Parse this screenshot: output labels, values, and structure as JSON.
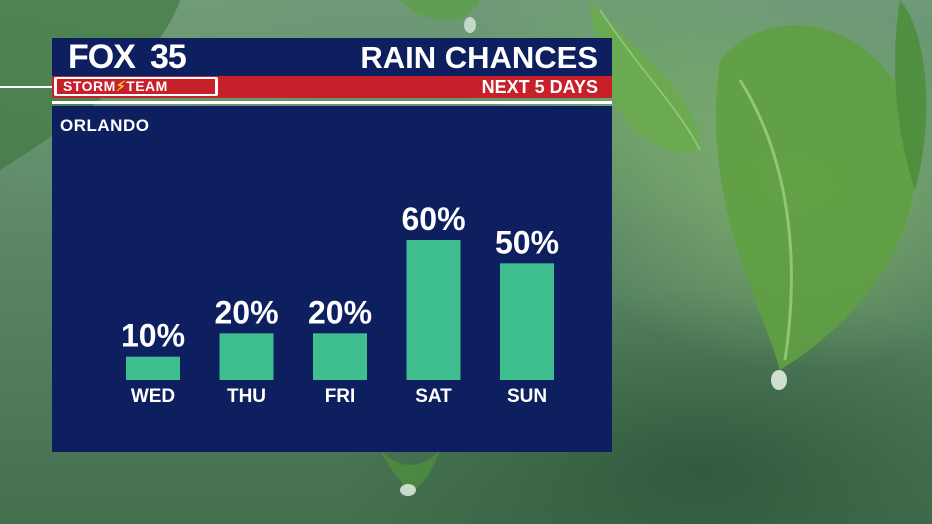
{
  "brand": {
    "fox": "FOX",
    "number": "35",
    "team_line": "STORM",
    "team_line_2": "TEAM"
  },
  "header": {
    "title": "RAIN CHANCES",
    "subtitle": "NEXT 5 DAYS"
  },
  "panel": {
    "location": "ORLANDO"
  },
  "colors": {
    "navy": "#0e1f60",
    "red": "#c8202a",
    "bar": "#3fbf8f",
    "text": "#ffffff"
  },
  "chart_data": {
    "type": "bar",
    "categories": [
      "WED",
      "THU",
      "FRI",
      "SAT",
      "SUN"
    ],
    "values": [
      10,
      20,
      20,
      60,
      50
    ],
    "value_labels": [
      "10%",
      "20%",
      "20%",
      "60%",
      "50%"
    ],
    "ylim": [
      0,
      60
    ],
    "grid": false,
    "legend": "none"
  }
}
